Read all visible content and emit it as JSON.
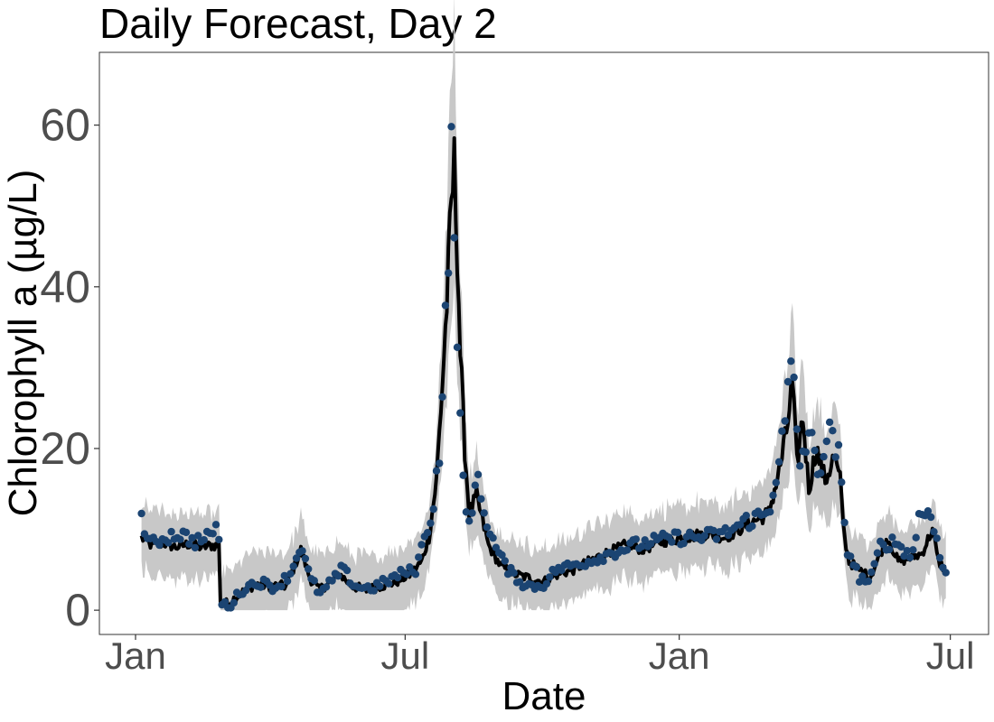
{
  "chart_data": {
    "type": "line",
    "title": "Daily Forecast, Day 2",
    "xlabel": "Date",
    "ylabel": "Chlorophyll a (µg/L)",
    "x_range": [
      "2019-01-01",
      "2020-06-30"
    ],
    "ylim": [
      -3,
      69
    ],
    "yticks": [
      0,
      20,
      40,
      60
    ],
    "ytick_labels": [
      "0",
      "20",
      "40",
      "60"
    ],
    "xticks": [
      "2019-01-01",
      "2019-07-01",
      "2020-01-01",
      "2020-07-01"
    ],
    "xtick_labels": [
      "Jan",
      "Jul",
      "Jan",
      "Jul"
    ],
    "grid": false,
    "colors": {
      "forecast_line": "#000000",
      "interval": "#c8c8c8",
      "observed": "#1b4472",
      "axis": "#333333",
      "tick_label": "#4d4d4d"
    },
    "forecast_anchor": [
      [
        "2019-01-05",
        9
      ],
      [
        "2019-01-12",
        8
      ],
      [
        "2019-01-20",
        8.3
      ],
      [
        "2019-01-28",
        7.8
      ],
      [
        "2019-02-06",
        8.2
      ],
      [
        "2019-02-14",
        7.8
      ],
      [
        "2019-02-21",
        8
      ],
      [
        "2019-02-26",
        8
      ],
      [
        "2019-02-27",
        1
      ],
      [
        "2019-03-04",
        0.8
      ],
      [
        "2019-03-12",
        2
      ],
      [
        "2019-03-22",
        3.2
      ],
      [
        "2019-04-01",
        3
      ],
      [
        "2019-04-12",
        3
      ],
      [
        "2019-04-18",
        5.5
      ],
      [
        "2019-04-22",
        7.5
      ],
      [
        "2019-04-28",
        4
      ],
      [
        "2019-05-04",
        2.5
      ],
      [
        "2019-05-12",
        3.5
      ],
      [
        "2019-05-18",
        4.5
      ],
      [
        "2019-05-26",
        3
      ],
      [
        "2019-06-05",
        2.5
      ],
      [
        "2019-06-15",
        3
      ],
      [
        "2019-06-25",
        3.5
      ],
      [
        "2019-07-05",
        4.5
      ],
      [
        "2019-07-12",
        6
      ],
      [
        "2019-07-17",
        9
      ],
      [
        "2019-07-22",
        16
      ],
      [
        "2019-07-26",
        28
      ],
      [
        "2019-07-29",
        38
      ],
      [
        "2019-08-01",
        50
      ],
      [
        "2019-08-03",
        55
      ],
      [
        "2019-08-05",
        45
      ],
      [
        "2019-08-07",
        32
      ],
      [
        "2019-08-10",
        20
      ],
      [
        "2019-08-13",
        12
      ],
      [
        "2019-08-18",
        14
      ],
      [
        "2019-08-26",
        8
      ],
      [
        "2019-09-03",
        5.5
      ],
      [
        "2019-09-12",
        4.5
      ],
      [
        "2019-09-22",
        4
      ],
      [
        "2019-10-02",
        3.5
      ],
      [
        "2019-10-12",
        4.5
      ],
      [
        "2019-10-22",
        5
      ],
      [
        "2019-11-01",
        6
      ],
      [
        "2019-11-12",
        7
      ],
      [
        "2019-11-25",
        8
      ],
      [
        "2019-12-08",
        7.5
      ],
      [
        "2019-12-20",
        8.5
      ],
      [
        "2020-01-05",
        9
      ],
      [
        "2020-01-20",
        9.5
      ],
      [
        "2020-02-01",
        9
      ],
      [
        "2020-02-10",
        10
      ],
      [
        "2020-02-20",
        11
      ],
      [
        "2020-03-01",
        12
      ],
      [
        "2020-03-08",
        17
      ],
      [
        "2020-03-13",
        22
      ],
      [
        "2020-03-17",
        28
      ],
      [
        "2020-03-20",
        18
      ],
      [
        "2020-03-24",
        24
      ],
      [
        "2020-03-28",
        15
      ],
      [
        "2020-04-02",
        20
      ],
      [
        "2020-04-08",
        16
      ],
      [
        "2020-04-14",
        19
      ],
      [
        "2020-04-18",
        16
      ],
      [
        "2020-04-21",
        9
      ],
      [
        "2020-04-24",
        6
      ],
      [
        "2020-05-01",
        5
      ],
      [
        "2020-05-08",
        4
      ],
      [
        "2020-05-15",
        7
      ],
      [
        "2020-05-20",
        9
      ],
      [
        "2020-05-27",
        6
      ],
      [
        "2020-06-05",
        6.5
      ],
      [
        "2020-06-12",
        7
      ],
      [
        "2020-06-19",
        10
      ],
      [
        "2020-06-23",
        6
      ],
      [
        "2020-06-28",
        5
      ]
    ],
    "observed_anchor": [
      [
        "2019-01-05",
        11.5
      ],
      [
        "2019-01-10",
        8
      ],
      [
        "2019-01-20",
        9
      ],
      [
        "2019-01-30",
        9.5
      ],
      [
        "2019-02-10",
        8.5
      ],
      [
        "2019-02-20",
        9
      ],
      [
        "2019-02-23",
        10.8
      ],
      [
        "2019-02-26",
        8.8
      ],
      [
        "2019-02-28",
        0.7
      ],
      [
        "2019-03-05",
        0.5
      ],
      [
        "2019-03-15",
        2.8
      ],
      [
        "2019-03-25",
        3.5
      ],
      [
        "2019-04-05",
        2.8
      ],
      [
        "2019-04-15",
        4.5
      ],
      [
        "2019-04-22",
        8.2
      ],
      [
        "2019-04-28",
        4
      ],
      [
        "2019-05-05",
        2
      ],
      [
        "2019-05-15",
        4
      ],
      [
        "2019-05-20",
        5.2
      ],
      [
        "2019-05-28",
        3
      ],
      [
        "2019-06-08",
        2.7
      ],
      [
        "2019-06-18",
        3.5
      ],
      [
        "2019-06-28",
        4.5
      ],
      [
        "2019-07-08",
        5
      ],
      [
        "2019-07-14",
        9
      ],
      [
        "2019-07-20",
        13
      ],
      [
        "2019-07-24",
        20
      ],
      [
        "2019-07-27",
        30
      ],
      [
        "2019-07-30",
        45
      ],
      [
        "2019-08-01",
        55.8
      ],
      [
        "2019-08-03",
        45
      ],
      [
        "2019-08-05",
        36
      ],
      [
        "2019-08-08",
        17
      ],
      [
        "2019-08-11",
        12
      ],
      [
        "2019-08-14",
        10
      ],
      [
        "2019-08-17",
        17
      ],
      [
        "2019-08-22",
        13
      ],
      [
        "2019-08-30",
        8
      ],
      [
        "2019-09-08",
        5
      ],
      [
        "2019-09-20",
        3
      ],
      [
        "2019-10-01",
        3
      ],
      [
        "2019-10-10",
        5
      ],
      [
        "2019-10-20",
        5.5
      ],
      [
        "2019-11-01",
        6
      ],
      [
        "2019-11-15",
        7
      ],
      [
        "2019-12-01",
        8
      ],
      [
        "2019-12-15",
        8.5
      ],
      [
        "2020-01-01",
        9
      ],
      [
        "2020-01-15",
        9
      ],
      [
        "2020-02-01",
        9.5
      ],
      [
        "2020-02-15",
        11
      ],
      [
        "2020-03-01",
        12
      ],
      [
        "2020-03-08",
        19
      ],
      [
        "2020-03-12",
        22.5
      ],
      [
        "2020-03-15",
        30
      ],
      [
        "2020-03-18",
        27
      ],
      [
        "2020-03-22",
        18
      ],
      [
        "2020-03-28",
        22
      ],
      [
        "2020-04-03",
        17
      ],
      [
        "2020-04-10",
        22
      ],
      [
        "2020-04-17",
        19
      ],
      [
        "2020-04-22",
        8
      ],
      [
        "2020-05-01",
        4
      ],
      [
        "2020-05-08",
        3.5
      ],
      [
        "2020-05-15",
        8
      ],
      [
        "2020-05-25",
        8.5
      ],
      [
        "2020-06-05",
        6.5
      ],
      [
        "2020-06-10",
        11.5
      ],
      [
        "2020-06-18",
        12.5
      ],
      [
        "2020-06-25",
        5.5
      ],
      [
        "2020-06-29",
        4.5
      ]
    ]
  }
}
